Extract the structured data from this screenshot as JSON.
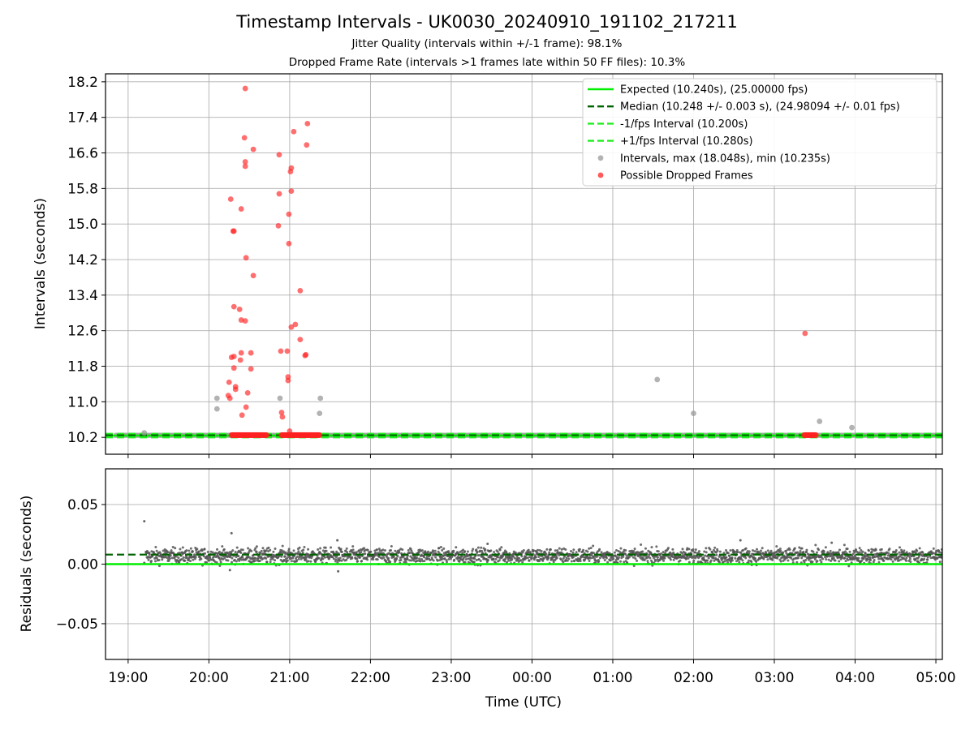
{
  "title": "Timestamp Intervals - UK0030_20240910_191102_217211",
  "subtitle1": "Jitter Quality (intervals within +/-1 frame): 98.1%",
  "subtitle2": "Dropped Frame Rate (intervals >1 frames late within 50 FF files): 10.3%",
  "colors": {
    "expected": "#00ee00",
    "median": "#006400",
    "interval_bound": "#22ee22",
    "intervals": "#999999",
    "dropped": "#ff2222",
    "residuals": "#555555",
    "grid": "#b0b0b0"
  },
  "chart_data": [
    {
      "type": "scatter",
      "panel": "top",
      "ylabel": "Intervals (seconds)",
      "xlim": [
        18.72,
        29.08
      ],
      "ylim": [
        9.82,
        18.38
      ],
      "x_ticks": [
        19,
        20,
        21,
        22,
        23,
        24,
        25,
        26,
        27,
        28,
        29
      ],
      "y_ticks": [
        "10.2",
        "11.0",
        "11.8",
        "12.6",
        "13.4",
        "14.2",
        "15.0",
        "15.8",
        "16.6",
        "17.4",
        "18.2"
      ],
      "grid": true,
      "legend_position": "upper right",
      "legend": [
        {
          "label": "Expected (10.240s), (25.00000 fps)",
          "kind": "line",
          "color": "#00ee00",
          "dash": "solid"
        },
        {
          "label": "Median (10.248 +/- 0.003 s), (24.98094 +/- 0.01 fps)",
          "kind": "line",
          "color": "#006400",
          "dash": "dashed"
        },
        {
          "label": "-1/fps Interval (10.200s)",
          "kind": "line",
          "color": "#22ee22",
          "dash": "dashed"
        },
        {
          "label": "+1/fps Interval (10.280s)",
          "kind": "line",
          "color": "#22ee22",
          "dash": "dashed"
        },
        {
          "label": "Intervals, max (18.048s), min (10.235s)",
          "kind": "marker",
          "color": "#999999"
        },
        {
          "label": "Possible Dropped Frames",
          "kind": "marker",
          "color": "#ff2222"
        }
      ],
      "reference_lines": {
        "expected": 10.24,
        "median": 10.248,
        "minus_one_frame": 10.2,
        "plus_one_frame": 10.28
      },
      "baseline_band": {
        "x_start": 18.85,
        "x_end": 29.08,
        "y": 10.248,
        "step": 0.0285
      },
      "dropped_baseline_segments": [
        {
          "x_start": 20.28,
          "x_end": 20.72,
          "y": 10.25
        },
        {
          "x_start": 20.9,
          "x_end": 21.38,
          "y": 10.25
        },
        {
          "x_start": 27.37,
          "x_end": 27.52,
          "y": 10.25
        }
      ],
      "series": [
        {
          "name": "Intervals, max (18.048s), min (10.235s)",
          "points": [
            [
              20.1,
              11.08
            ],
            [
              20.1,
              10.84
            ],
            [
              20.88,
              11.08
            ],
            [
              21.38,
              11.08
            ],
            [
              21.37,
              10.74
            ],
            [
              25.55,
              11.5
            ],
            [
              26.0,
              10.74
            ],
            [
              27.56,
              10.56
            ],
            [
              27.96,
              10.42
            ],
            [
              19.2,
              10.3
            ]
          ]
        },
        {
          "name": "Possible Dropped Frames",
          "points": [
            [
              20.45,
              18.05
            ],
            [
              20.44,
              16.94
            ],
            [
              20.55,
              16.68
            ],
            [
              20.45,
              16.4
            ],
            [
              20.45,
              16.3
            ],
            [
              20.27,
              15.56
            ],
            [
              20.4,
              15.34
            ],
            [
              20.3,
              14.84
            ],
            [
              20.31,
              14.84
            ],
            [
              20.46,
              14.24
            ],
            [
              20.55,
              13.84
            ],
            [
              20.31,
              13.14
            ],
            [
              20.38,
              13.08
            ],
            [
              20.4,
              12.84
            ],
            [
              20.45,
              12.82
            ],
            [
              20.28,
              12.0
            ],
            [
              20.31,
              12.02
            ],
            [
              20.39,
              11.94
            ],
            [
              20.4,
              12.1
            ],
            [
              20.52,
              12.1
            ],
            [
              20.31,
              11.76
            ],
            [
              20.52,
              11.74
            ],
            [
              20.25,
              11.44
            ],
            [
              20.33,
              11.34
            ],
            [
              20.33,
              11.28
            ],
            [
              20.48,
              11.2
            ],
            [
              20.24,
              11.14
            ],
            [
              20.26,
              11.08
            ],
            [
              20.46,
              10.88
            ],
            [
              20.41,
              10.7
            ],
            [
              21.05,
              17.08
            ],
            [
              21.22,
              17.26
            ],
            [
              21.21,
              16.78
            ],
            [
              20.87,
              16.56
            ],
            [
              21.02,
              16.26
            ],
            [
              21.01,
              16.18
            ],
            [
              21.02,
              15.74
            ],
            [
              20.87,
              15.68
            ],
            [
              20.99,
              15.22
            ],
            [
              20.86,
              14.96
            ],
            [
              20.99,
              14.56
            ],
            [
              21.13,
              13.5
            ],
            [
              21.07,
              12.74
            ],
            [
              21.02,
              12.68
            ],
            [
              21.13,
              12.4
            ],
            [
              20.89,
              12.14
            ],
            [
              20.97,
              12.14
            ],
            [
              21.2,
              12.06
            ],
            [
              21.19,
              12.04
            ],
            [
              20.98,
              11.56
            ],
            [
              20.98,
              11.48
            ],
            [
              20.9,
              10.76
            ],
            [
              20.91,
              10.66
            ],
            [
              21.0,
              10.34
            ],
            [
              27.38,
              12.54
            ]
          ]
        }
      ]
    },
    {
      "type": "scatter",
      "panel": "bottom",
      "xlabel": "Time (UTC)",
      "ylabel": "Residuals (seconds)",
      "xlim": [
        18.72,
        29.08
      ],
      "ylim": [
        -0.08,
        0.08
      ],
      "x_ticks": [
        19,
        20,
        21,
        22,
        23,
        24,
        25,
        26,
        27,
        28,
        29
      ],
      "x_tick_labels": [
        "19:00",
        "20:00",
        "21:00",
        "22:00",
        "23:00",
        "00:00",
        "01:00",
        "02:00",
        "03:00",
        "04:00",
        "05:00"
      ],
      "y_ticks": [
        "0.05",
        "0.00",
        "−0.05"
      ],
      "y_tick_values": [
        0.05,
        0.0,
        -0.05
      ],
      "grid": true,
      "reference_lines": {
        "zero": 0.0,
        "median_residual": 0.008
      },
      "residual_band": {
        "x_start": 19.22,
        "x_end": 29.08,
        "center": 0.007,
        "spread": 0.0045,
        "step": 0.0042
      },
      "residual_outliers": [
        [
          19.2,
          0.036
        ],
        [
          20.28,
          0.026
        ],
        [
          20.26,
          -0.005
        ],
        [
          21.6,
          -0.006
        ],
        [
          21.59,
          0.02
        ],
        [
          26.58,
          0.02
        ],
        [
          23.45,
          0.017
        ],
        [
          27.71,
          0.018
        ],
        [
          19.2,
          0.001
        ],
        [
          22.1,
          0.0
        ]
      ]
    }
  ]
}
